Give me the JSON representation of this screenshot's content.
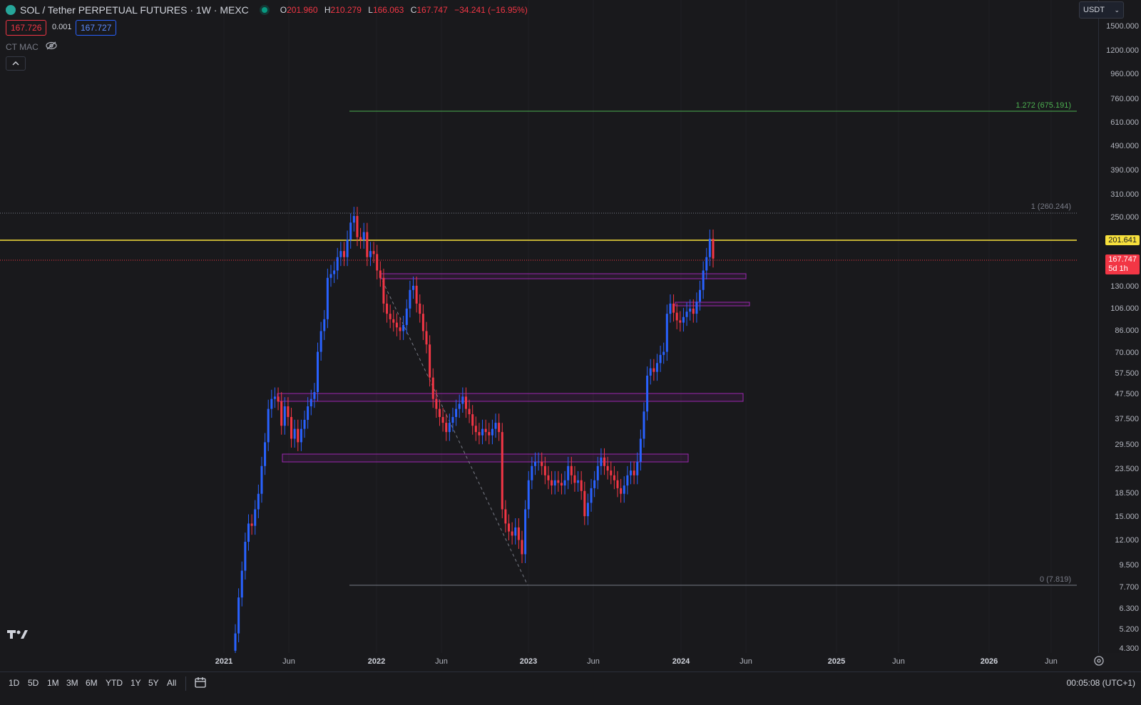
{
  "header": {
    "symbol_title": "SOL / Tether PERPETUAL FUTURES · 1W · MEXC",
    "ohlc": {
      "o_label": "O",
      "o": "201.960",
      "h_label": "H",
      "h": "210.279",
      "l_label": "L",
      "l": "166.063",
      "c_label": "C",
      "c": "167.747",
      "change": "−34.241 (−16.95%)"
    },
    "sell_price": "167.726",
    "spread": "0.001",
    "buy_price": "167.727",
    "indicator_name": "CT MAC",
    "currency_selector": "USDT",
    "collapse_icon": "chevron-up-icon"
  },
  "price_axis": {
    "labels": [
      "1500.000",
      "1200.000",
      "960.000",
      "760.000",
      "610.000",
      "490.000",
      "390.000",
      "310.000",
      "250.000",
      "130.000",
      "106.000",
      "86.000",
      "70.000",
      "57.500",
      "47.500",
      "37.500",
      "29.500",
      "23.500",
      "18.500",
      "15.000",
      "12.000",
      "9.500",
      "7.700",
      "6.300",
      "5.200",
      "4.300"
    ],
    "yellow_tag": "201.641",
    "last_price_tag": "167.747",
    "countdown": "5d 1h"
  },
  "fib": {
    "level_1272": "1.272 (675.191)",
    "level_1": "1 (260.244)",
    "level_0": "0 (7.819)"
  },
  "time_axis": {
    "labels": [
      {
        "t": "2021",
        "year": true
      },
      {
        "t": "Jun",
        "year": false
      },
      {
        "t": "2022",
        "year": true
      },
      {
        "t": "Jun",
        "year": false
      },
      {
        "t": "2023",
        "year": true
      },
      {
        "t": "Jun",
        "year": false
      },
      {
        "t": "2024",
        "year": true
      },
      {
        "t": "Jun",
        "year": false
      },
      {
        "t": "2025",
        "year": true
      },
      {
        "t": "Jun",
        "year": false
      },
      {
        "t": "2026",
        "year": true
      },
      {
        "t": "Jun",
        "year": false
      }
    ]
  },
  "bottom_bar": {
    "ranges": [
      "1D",
      "5D",
      "1M",
      "3M",
      "6M",
      "YTD",
      "1Y",
      "5Y",
      "All"
    ],
    "clock": "00:05:08 (UTC+1)"
  },
  "colors": {
    "up": "#2962ff",
    "down": "#f23645",
    "fib_green": "#4caf50",
    "yellow": "#f7e03c",
    "zone": "#9c27b0"
  },
  "chart_data": {
    "type": "candlestick",
    "price_scale": "log",
    "points_per_candle": "approximate weekly closes",
    "closes": [
      5.0,
      7.0,
      9.0,
      11.8,
      14.0,
      13.7,
      16.0,
      18.5,
      24.0,
      30.0,
      41.0,
      45.0,
      46.0,
      44.0,
      35.0,
      42.0,
      38.0,
      31.0,
      34.0,
      30.0,
      34.0,
      37.0,
      42.0,
      45.0,
      48.0,
      70.0,
      85.0,
      95.0,
      140.0,
      145.0,
      150.0,
      170.0,
      180.0,
      170.0,
      200.0,
      235.0,
      250.0,
      205.0,
      200.0,
      215.0,
      170.0,
      180.0,
      175.0,
      150.0,
      140.0,
      110.0,
      100.0,
      95.0,
      92.0,
      88.0,
      85.0,
      90.0,
      105.0,
      125.0,
      130.0,
      110.0,
      100.0,
      85.0,
      75.0,
      55.0,
      45.0,
      41.0,
      38.0,
      36.0,
      33.0,
      36.0,
      38.0,
      41.0,
      43.0,
      46.0,
      41.0,
      39.0,
      35.0,
      33.0,
      32.0,
      34.0,
      33.0,
      32.0,
      34.0,
      36.0,
      33.0,
      16.0,
      14.0,
      13.0,
      12.5,
      13.5,
      12.0,
      10.5,
      16.0,
      21.0,
      24.0,
      25.0,
      25.0,
      24.0,
      22.0,
      21.0,
      20.0,
      21.0,
      20.5,
      20.0,
      21.0,
      24.0,
      22.0,
      20.5,
      21.0,
      19.0,
      15.0,
      17.0,
      19.5,
      21.0,
      24.0,
      26.0,
      24.0,
      23.0,
      22.0,
      21.0,
      19.5,
      18.5,
      20.0,
      22.0,
      23.0,
      22.0,
      25.0,
      31.0,
      40.0,
      56.0,
      60.0,
      58.0,
      63.0,
      68.0,
      70.0,
      100.0,
      110.0,
      101.0,
      94.0,
      92.0,
      97.0,
      102.0,
      105.0,
      100.0,
      112.0,
      125.0,
      150.0,
      170.0,
      201.96,
      167.747
    ]
  }
}
